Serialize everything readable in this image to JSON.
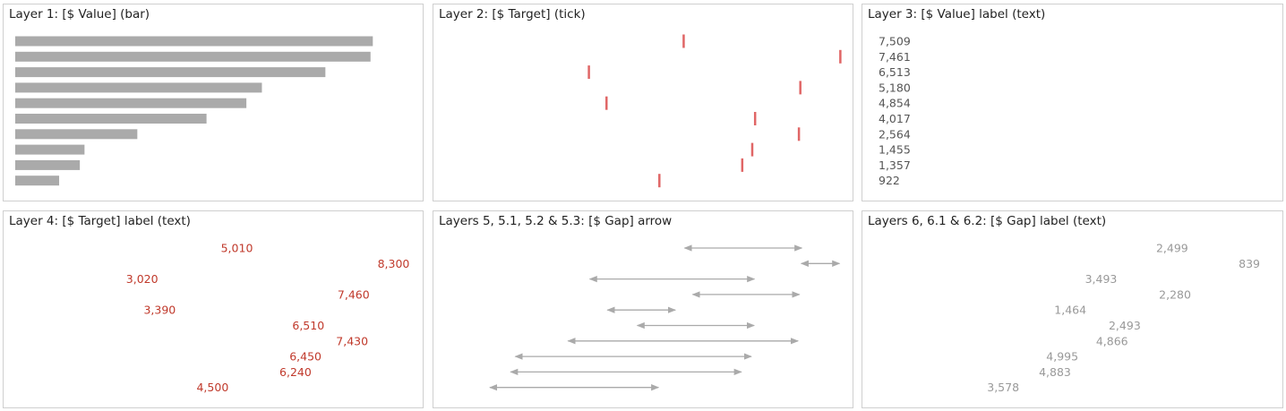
{
  "panels": [
    {
      "id": "p1",
      "title": "Layer 1: [$ Value] (bar)",
      "mark": "bar"
    },
    {
      "id": "p2",
      "title": "Layer 2: [$ Target] (tick)",
      "mark": "tick"
    },
    {
      "id": "p3",
      "title": "Layer 3: [$ Value] label (text)",
      "mark": "value-label"
    },
    {
      "id": "p4",
      "title": "Layer 4: [$ Target] label (text)",
      "mark": "target-label"
    },
    {
      "id": "p5",
      "title": "Layers 5, 5.1, 5.2 & 5.3: [$ Gap] arrow",
      "mark": "arrow"
    },
    {
      "id": "p6",
      "title": "Layers 6, 6.1 & 6.2: [$ Gap] label (text)",
      "mark": "gap-label"
    }
  ],
  "colors": {
    "bar": "#aaaaaa",
    "tick": "#e06666",
    "target_text": "#c0392b",
    "value_text": "#555555",
    "gap_text": "#999999",
    "arrow": "#aaaaaa"
  },
  "chart_data": {
    "type": "bar",
    "x_domain": [
      0,
      8500
    ],
    "rows": [
      {
        "value": 7509,
        "value_label": "7,509",
        "target": 5010,
        "target_label": "5,010",
        "gap": 2499,
        "gap_label": "2,499"
      },
      {
        "value": 7461,
        "value_label": "7,461",
        "target": 8300,
        "target_label": "8,300",
        "gap": 839,
        "gap_label": "839"
      },
      {
        "value": 6513,
        "value_label": "6,513",
        "target": 3020,
        "target_label": "3,020",
        "gap": 3493,
        "gap_label": "3,493"
      },
      {
        "value": 5180,
        "value_label": "5,180",
        "target": 7460,
        "target_label": "7,460",
        "gap": 2280,
        "gap_label": "2,280"
      },
      {
        "value": 4854,
        "value_label": "4,854",
        "target": 3390,
        "target_label": "3,390",
        "gap": 1464,
        "gap_label": "1,464"
      },
      {
        "value": 4017,
        "value_label": "4,017",
        "target": 6510,
        "target_label": "6,510",
        "gap": 2493,
        "gap_label": "2,493"
      },
      {
        "value": 2564,
        "value_label": "2,564",
        "target": 7430,
        "target_label": "7,430",
        "gap": 4866,
        "gap_label": "4,866"
      },
      {
        "value": 1455,
        "value_label": "1,455",
        "target": 6450,
        "target_label": "6,450",
        "gap": 4995,
        "gap_label": "4,995"
      },
      {
        "value": 1357,
        "value_label": "1,357",
        "target": 6240,
        "target_label": "6,240",
        "gap": 4883,
        "gap_label": "4,883"
      },
      {
        "value": 922,
        "value_label": "922",
        "target": 4500,
        "target_label": "4,500",
        "gap": 3578,
        "gap_label": "3,578"
      }
    ]
  }
}
